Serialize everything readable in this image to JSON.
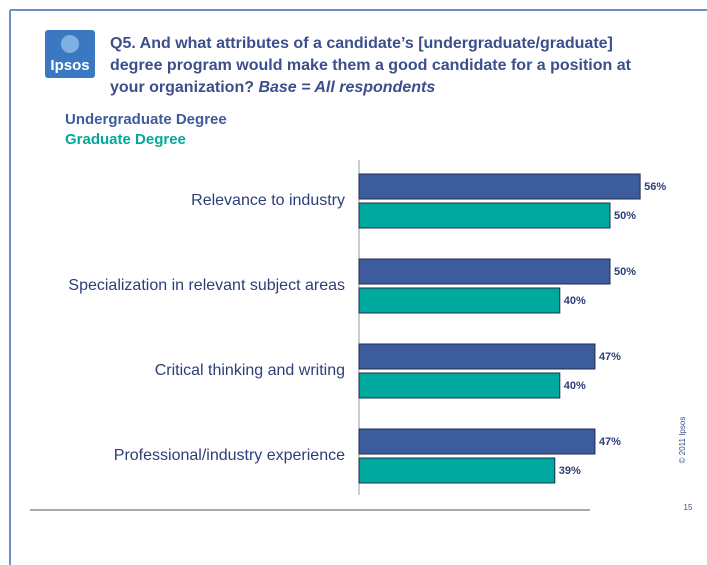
{
  "chart_data": {
    "type": "hbar",
    "logo": "Ipsos",
    "title": [
      "Q5. And what attributes of a candidate’s [undergraduate/graduate]",
      "degree program would make them a good candidate for a position at",
      "your organization?"
    ],
    "base_note": "Base = All respondents",
    "categories": [
      "Relevance to industry",
      "Specialization in relevant subject areas",
      "Critical thinking and writing",
      "Professional/industry experience"
    ],
    "series": [
      {
        "name": "Undergraduate Degree",
        "color": "#3d5c9c",
        "values": [
          56,
          50,
          47,
          47
        ],
        "value_labels": [
          "56%",
          "50%",
          "47%",
          "47%"
        ]
      },
      {
        "name": "Graduate Degree",
        "color": "#00a99d",
        "values": [
          50,
          40,
          40,
          39
        ],
        "value_labels": [
          "50%",
          "40%",
          "40%",
          "39%"
        ]
      }
    ],
    "xlim": [
      0,
      100
    ],
    "legend": "top-left",
    "copyright": "© 2011 Ipsos",
    "page_number": "15"
  }
}
